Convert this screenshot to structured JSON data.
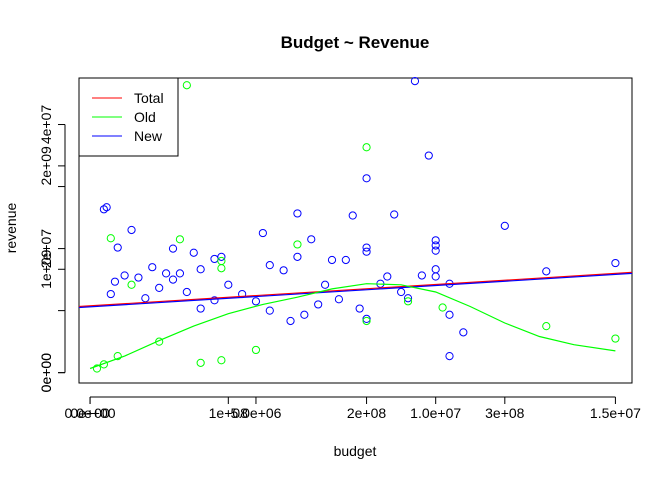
{
  "chart_data": {
    "type": "scatter",
    "title": "Budget ~ Revenue",
    "xlabel": "budget",
    "ylabel": "revenue",
    "xlim": [
      -8000000,
      392000000
    ],
    "ylim": [
      -100000000,
      2850000000
    ],
    "x_ticks_primary": [
      {
        "value": 0,
        "label": "0e+00"
      },
      {
        "value": 100000000,
        "label": "1e+08"
      },
      {
        "value": 200000000,
        "label": "2e+08"
      },
      {
        "value": 300000000,
        "label": "3e+08"
      }
    ],
    "x_ticks_secondary": [
      {
        "value": 0,
        "label": "0.0e+00"
      },
      {
        "value": 120000000,
        "label": "5.0e+06"
      },
      {
        "value": 250000000,
        "label": "1.0e+07"
      },
      {
        "value": 380000000,
        "label": "1.5e+07"
      }
    ],
    "y_ticks_primary": [
      {
        "value": 0,
        "label": "0e+00"
      },
      {
        "value": 1000000000,
        "label": "1e+09"
      },
      {
        "value": 2000000000,
        "label": "2e+09"
      }
    ],
    "y_ticks_secondary": [
      {
        "value": 0,
        "label": "0e+00"
      },
      {
        "value": 1200000000,
        "label": "2e+07"
      },
      {
        "value": 2400000000,
        "label": "4e+07"
      }
    ],
    "y_ticks_extra": [
      {
        "value": 600000000,
        "label": ""
      },
      {
        "value": 1800000000,
        "label": ""
      },
      {
        "value": 3000000000,
        "label": ""
      }
    ],
    "legend": {
      "position": "top-left",
      "entries": [
        {
          "label": "Total",
          "color": "#ff0000"
        },
        {
          "label": "Old",
          "color": "#00ff00"
        },
        {
          "label": "New",
          "color": "#0000ff"
        }
      ]
    },
    "series": [
      {
        "name": "New",
        "color": "#0000ff",
        "points": [
          [
            235000000,
            2820000000
          ],
          [
            245000000,
            2100000000
          ],
          [
            200000000,
            1880000000
          ],
          [
            150000000,
            1540000000
          ],
          [
            190000000,
            1520000000
          ],
          [
            220000000,
            1530000000
          ],
          [
            300000000,
            1420000000
          ],
          [
            125000000,
            1350000000
          ],
          [
            160000000,
            1290000000
          ],
          [
            250000000,
            1280000000
          ],
          [
            250000000,
            1230000000
          ],
          [
            200000000,
            1210000000
          ],
          [
            200000000,
            1170000000
          ],
          [
            250000000,
            1180000000
          ],
          [
            380000000,
            1060000000
          ],
          [
            330000000,
            980000000
          ],
          [
            250000000,
            1000000000
          ],
          [
            250000000,
            930000000
          ],
          [
            260000000,
            860000000
          ],
          [
            240000000,
            940000000
          ],
          [
            215000000,
            930000000
          ],
          [
            170000000,
            850000000
          ],
          [
            140000000,
            990000000
          ],
          [
            185000000,
            1090000000
          ],
          [
            95000000,
            1120000000
          ],
          [
            150000000,
            1120000000
          ],
          [
            175000000,
            1090000000
          ],
          [
            130000000,
            1040000000
          ],
          [
            210000000,
            860000000
          ],
          [
            225000000,
            780000000
          ],
          [
            230000000,
            720000000
          ],
          [
            260000000,
            560000000
          ],
          [
            270000000,
            390000000
          ],
          [
            260000000,
            160000000
          ],
          [
            200000000,
            520000000
          ],
          [
            195000000,
            620000000
          ],
          [
            180000000,
            710000000
          ],
          [
            165000000,
            660000000
          ],
          [
            155000000,
            560000000
          ],
          [
            145000000,
            500000000
          ],
          [
            130000000,
            600000000
          ],
          [
            120000000,
            690000000
          ],
          [
            110000000,
            760000000
          ],
          [
            100000000,
            850000000
          ],
          [
            90000000,
            700000000
          ],
          [
            80000000,
            620000000
          ],
          [
            70000000,
            780000000
          ],
          [
            60000000,
            900000000
          ],
          [
            50000000,
            820000000
          ],
          [
            40000000,
            720000000
          ],
          [
            12000000,
            1600000000
          ],
          [
            10000000,
            1580000000
          ],
          [
            30000000,
            1380000000
          ],
          [
            20000000,
            1210000000
          ],
          [
            60000000,
            1200000000
          ],
          [
            75000000,
            1160000000
          ],
          [
            90000000,
            1100000000
          ],
          [
            80000000,
            1000000000
          ],
          [
            65000000,
            960000000
          ],
          [
            55000000,
            960000000
          ],
          [
            45000000,
            1020000000
          ],
          [
            35000000,
            920000000
          ],
          [
            25000000,
            940000000
          ],
          [
            18000000,
            880000000
          ],
          [
            15000000,
            760000000
          ]
        ]
      },
      {
        "name": "Old",
        "color": "#00ff00",
        "points": [
          [
            70000000,
            2780000000
          ],
          [
            200000000,
            2180000000
          ],
          [
            15000000,
            1300000000
          ],
          [
            65000000,
            1290000000
          ],
          [
            150000000,
            1240000000
          ],
          [
            95000000,
            1080000000
          ],
          [
            95000000,
            1010000000
          ],
          [
            30000000,
            850000000
          ],
          [
            330000000,
            450000000
          ],
          [
            380000000,
            330000000
          ],
          [
            255000000,
            630000000
          ],
          [
            200000000,
            500000000
          ],
          [
            230000000,
            690000000
          ],
          [
            120000000,
            220000000
          ],
          [
            95000000,
            120000000
          ],
          [
            80000000,
            95000000
          ],
          [
            50000000,
            300000000
          ],
          [
            20000000,
            160000000
          ],
          [
            10000000,
            80000000
          ],
          [
            5000000,
            40000000
          ]
        ]
      }
    ],
    "fit_lines": [
      {
        "name": "Total",
        "color": "#ff0000",
        "points": [
          [
            -8000000,
            640000000
          ],
          [
            392000000,
            970000000
          ]
        ]
      },
      {
        "name": "New",
        "color": "#0000ff",
        "points": [
          [
            -8000000,
            630000000
          ],
          [
            392000000,
            960000000
          ]
        ]
      },
      {
        "name": "Old",
        "color": "#00ff00",
        "points": [
          [
            0,
            40000000
          ],
          [
            25000000,
            160000000
          ],
          [
            50000000,
            310000000
          ],
          [
            75000000,
            450000000
          ],
          [
            100000000,
            570000000
          ],
          [
            125000000,
            660000000
          ],
          [
            150000000,
            730000000
          ],
          [
            175000000,
            810000000
          ],
          [
            200000000,
            860000000
          ],
          [
            225000000,
            850000000
          ],
          [
            250000000,
            780000000
          ],
          [
            275000000,
            640000000
          ],
          [
            300000000,
            480000000
          ],
          [
            325000000,
            350000000
          ],
          [
            350000000,
            270000000
          ],
          [
            380000000,
            210000000
          ]
        ]
      }
    ]
  }
}
